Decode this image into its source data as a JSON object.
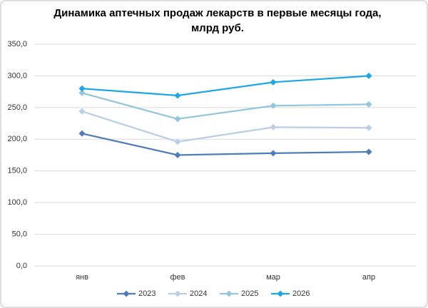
{
  "chart_data": {
    "type": "line",
    "title": "Динамика аптечных продаж лекарств в первые месяцы года,",
    "subtitle": "млрд руб.",
    "categories": [
      "янв",
      "фев",
      "мар",
      "апр"
    ],
    "series": [
      {
        "name": "2023",
        "color": "#4f7cba",
        "values": [
          209,
          175,
          178,
          180
        ]
      },
      {
        "name": "2024",
        "color": "#b9cfe6",
        "values": [
          244,
          196,
          219,
          218
        ]
      },
      {
        "name": "2025",
        "color": "#93c6dd",
        "values": [
          273,
          232,
          253,
          255
        ]
      },
      {
        "name": "2026",
        "color": "#1ea7e8",
        "values": [
          280,
          269,
          290,
          300
        ]
      }
    ],
    "ylim": [
      0,
      350
    ],
    "yticks": [
      {
        "value": 0,
        "label": "0,0"
      },
      {
        "value": 50,
        "label": "50,0"
      },
      {
        "value": 100,
        "label": "100,0"
      },
      {
        "value": 150,
        "label": "150,0"
      },
      {
        "value": 200,
        "label": "200,0"
      },
      {
        "value": 250,
        "label": "250,0"
      },
      {
        "value": 300,
        "label": "300,0"
      },
      {
        "value": 350,
        "label": "350,0"
      }
    ],
    "grid": true,
    "legend": "bottom"
  }
}
